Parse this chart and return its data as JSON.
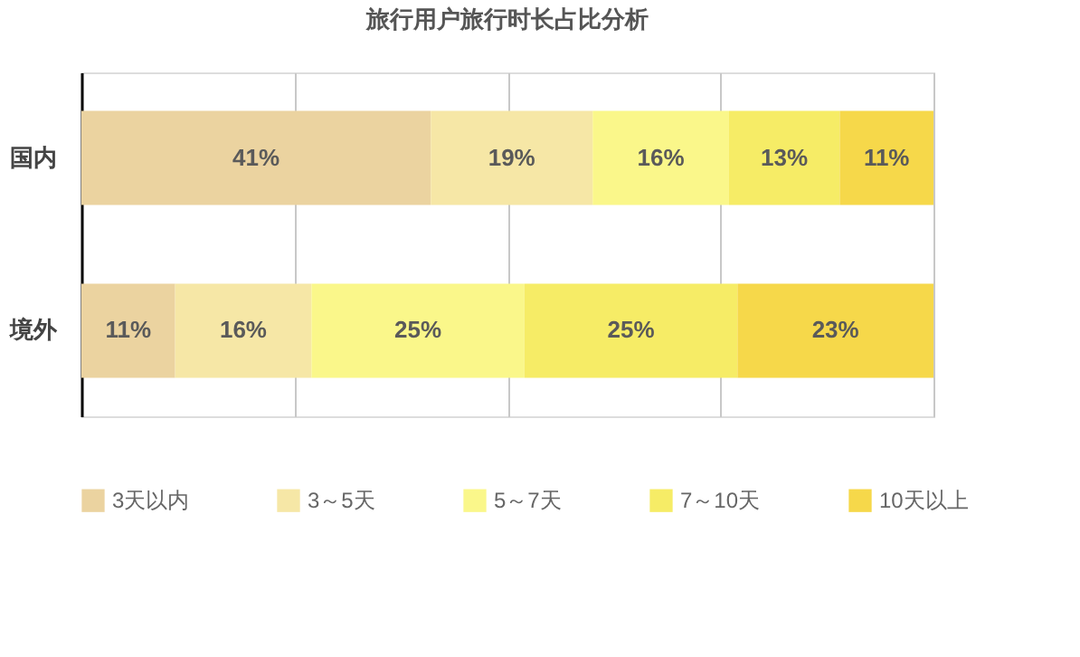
{
  "chart_data": {
    "type": "bar",
    "orientation": "horizontal",
    "stacked": true,
    "title": "旅行用户旅行时长占比分析",
    "categories": [
      "国内",
      "境外"
    ],
    "series": [
      {
        "name": "3天以内",
        "color": "#ebd3a0",
        "values": [
          41,
          11
        ],
        "value_labels": [
          "41%",
          "11%"
        ]
      },
      {
        "name": "3～5天",
        "color": "#f6e7a6",
        "values": [
          19,
          16
        ],
        "value_labels": [
          "19%",
          "16%"
        ]
      },
      {
        "name": "5～7天",
        "color": "#faf78a",
        "values": [
          16,
          25
        ],
        "value_labels": [
          "16%",
          "25%"
        ]
      },
      {
        "name": "7～10天",
        "color": "#f6ec66",
        "values": [
          13,
          25
        ],
        "value_labels": [
          "13%",
          "25%"
        ]
      },
      {
        "name": "10天以上",
        "color": "#f6d84a",
        "values": [
          11,
          23
        ],
        "value_labels": [
          "11%",
          "23%"
        ]
      }
    ],
    "xlim": [
      0,
      100
    ],
    "xticks": [
      {
        "value": 0,
        "label": null
      },
      {
        "value": 25,
        "label": null
      },
      {
        "value": 50,
        "label": null
      },
      {
        "value": 75,
        "label": null
      },
      {
        "value": 100,
        "label": null
      }
    ],
    "grid": "x",
    "legend": "bottom",
    "tick_labels": "y"
  }
}
